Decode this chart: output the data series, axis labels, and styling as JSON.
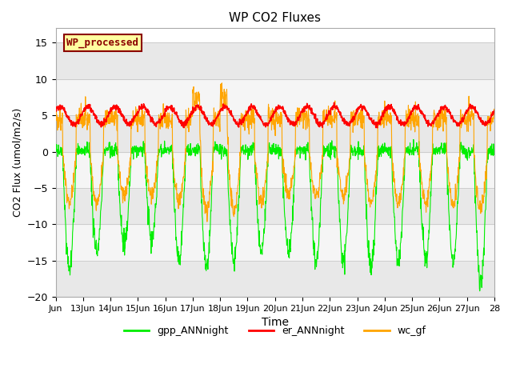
{
  "title": "WP CO2 Fluxes",
  "xlabel": "Time",
  "ylabel": "CO2 Flux (umol/m2/s)",
  "ylim": [
    -20,
    17
  ],
  "xlim_start_day": 12,
  "xlim_end_day": 28,
  "xtick_days": [
    12,
    13,
    14,
    15,
    16,
    17,
    18,
    19,
    20,
    21,
    22,
    23,
    24,
    25,
    26,
    27,
    28
  ],
  "xtick_labels": [
    "Jun",
    "13Jun",
    "14Jun",
    "15Jun",
    "16Jun",
    "17Jun",
    "18Jun",
    "19Jun",
    "20Jun",
    "21Jun",
    "22Jun",
    "23Jun",
    "24Jun",
    "25Jun",
    "26Jun",
    "27Jun",
    "28"
  ],
  "yticks": [
    -20,
    -15,
    -10,
    -5,
    0,
    5,
    10,
    15
  ],
  "color_gpp": "#00EE00",
  "color_er": "#FF0000",
  "color_wc": "#FFA500",
  "bg_color": "#FFFFFF",
  "plot_bg_color": "#FFFFFF",
  "annotation_text": "WP_processed",
  "annotation_bg": "#FFFFA0",
  "annotation_border": "#8B0000",
  "annotation_text_color": "#8B0000",
  "legend_labels": [
    "gpp_ANNnight",
    "er_ANNnight",
    "wc_gf"
  ],
  "n_points_per_day": 96,
  "start_day": 12,
  "end_day": 28,
  "er_base": 5.0,
  "er_amplitude": 1.2
}
